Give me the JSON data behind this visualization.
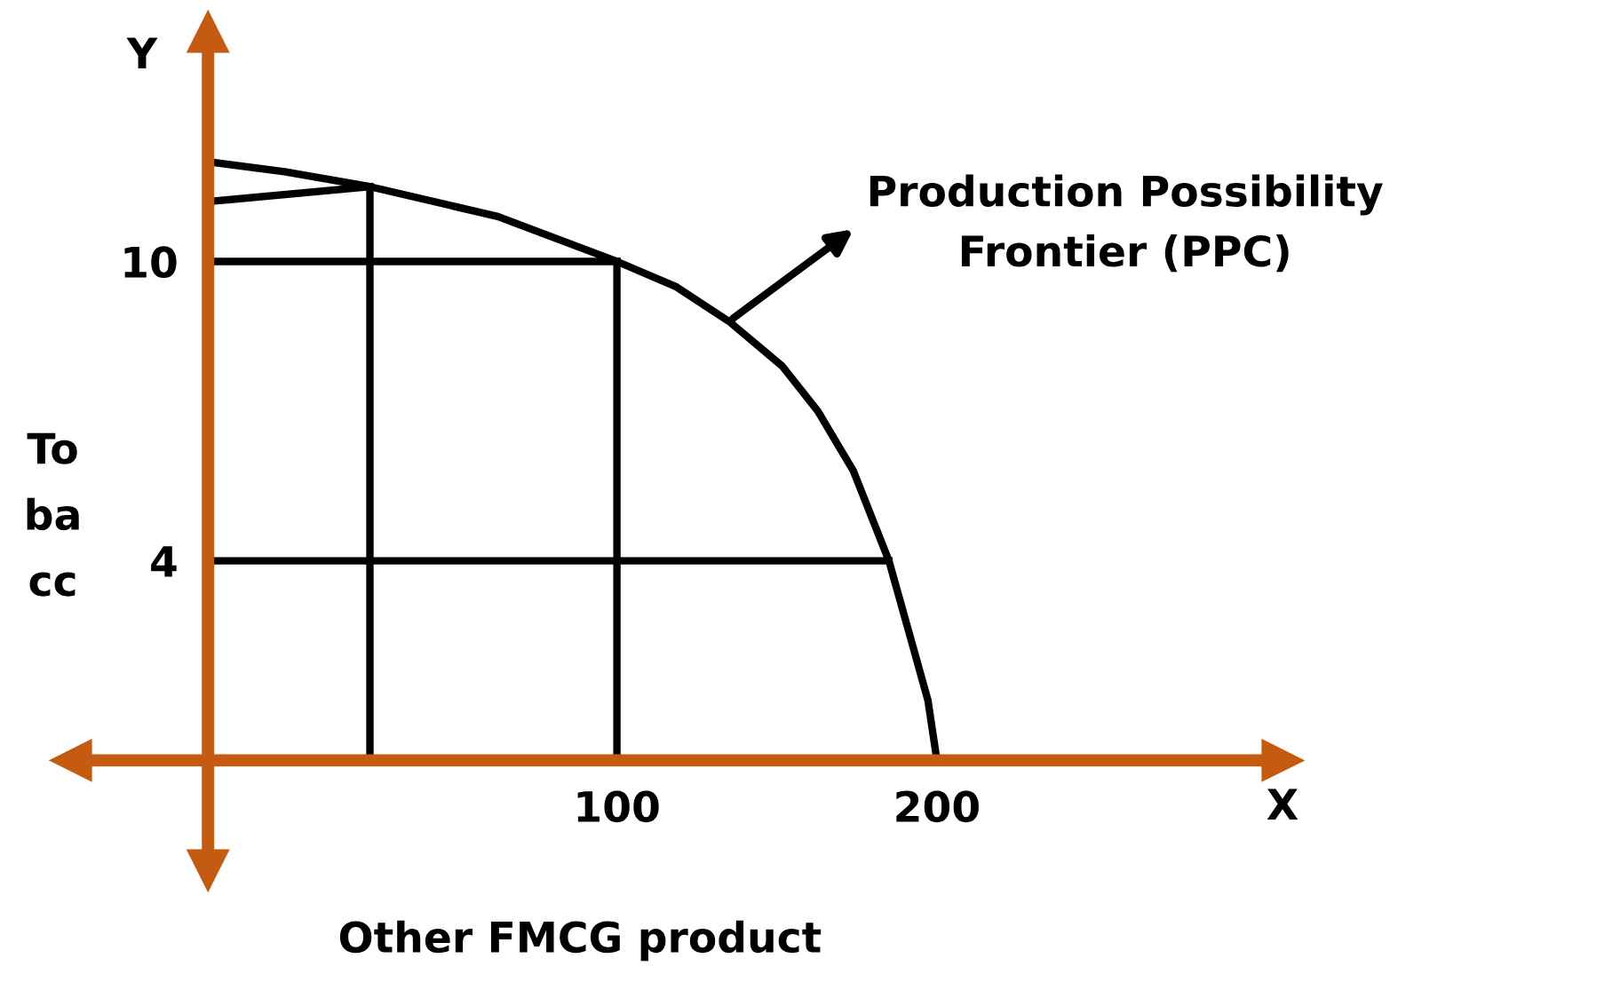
{
  "chart_data": {
    "type": "line",
    "xlabel": "Other FMCG product",
    "ylabel": "To\nba\ncc",
    "xlim": [
      -70.6,
      308
    ],
    "ylim": [
      -2.2,
      14.6
    ],
    "xticks": [
      100,
      200
    ],
    "yticks": [
      4,
      10
    ],
    "grid": false,
    "legend": false,
    "marker": "none",
    "line_style": "solid",
    "series": [
      {
        "color": "#000000",
        "x": [
          -27.8,
          -3.9,
          22.8,
          62.8,
          100,
          118.3,
          135,
          151.7,
          162.8,
          173.9,
          185,
          193.3,
          197.2,
          200
        ],
        "values": [
          12.0,
          11.8,
          11.5,
          10.9,
          10.0,
          9.5,
          8.8,
          7.9,
          7.0,
          5.8,
          4.0,
          2.1,
          1.2,
          0
        ]
      },
      {
        "color": "#000000",
        "x": [
          22.8,
          22.8
        ],
        "values": [
          0,
          11.5
        ]
      },
      {
        "color": "#000000",
        "x": [
          100,
          100
        ],
        "values": [
          0,
          10
        ]
      },
      {
        "color": "#000000",
        "x": [
          -27.8,
          100
        ],
        "values": [
          10,
          10
        ]
      },
      {
        "color": "#000000",
        "x": [
          -27.8,
          185
        ],
        "values": [
          4,
          4
        ]
      },
      {
        "color": "#000000",
        "x": [
          -27.8,
          22.8
        ],
        "values": [
          11.2,
          11.5
        ]
      }
    ],
    "annotations": [
      {
        "text": "Production Possibility\nFrontier (PPC)",
        "x": 135,
        "y": 8.8
      },
      "Y",
      "X"
    ]
  }
}
